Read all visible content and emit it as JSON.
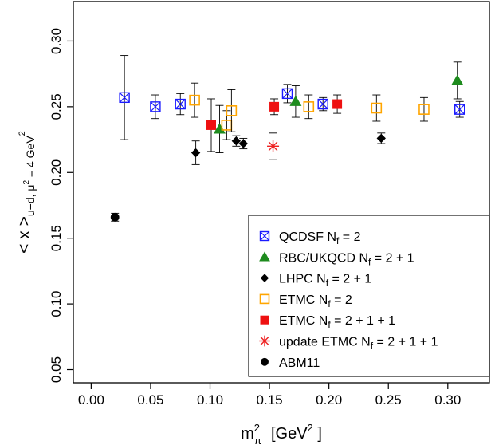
{
  "chart_data": {
    "type": "scatter",
    "xlabel": {
      "main": "m",
      "sup": "2",
      "sub": "π",
      "unit": "[GeV",
      "unit_sup": "2",
      "unit_end": " ]"
    },
    "ylabel": {
      "main": "< x >",
      "sub": "u−d, μ",
      "sub_sup": "2",
      "sub_end": " = 4  GeV",
      "end_sup": "2"
    },
    "xlim": [
      -0.015,
      0.335
    ],
    "ylim": [
      0.04,
      0.33
    ],
    "x_ticks": [
      0.0,
      0.05,
      0.1,
      0.15,
      0.2,
      0.25,
      0.3
    ],
    "x_tick_labels": [
      "0.00",
      "0.05",
      "0.10",
      "0.15",
      "0.20",
      "0.25",
      "0.30"
    ],
    "y_ticks": [
      0.05,
      0.1,
      0.15,
      0.2,
      0.25,
      0.3
    ],
    "y_tick_labels": [
      "0.05",
      "0.10",
      "0.15",
      "0.20",
      "0.25",
      "0.30"
    ],
    "grid": false,
    "legend_position": "bottom-right",
    "series": [
      {
        "name": "QCDSF N",
        "name_sub": "f",
        "name_tail": " = 2",
        "marker": "boxx",
        "color": "#1a1aff",
        "points": [
          {
            "x": 0.028,
            "y": 0.257,
            "err": 0.032
          },
          {
            "x": 0.054,
            "y": 0.25,
            "err": 0.009
          },
          {
            "x": 0.075,
            "y": 0.252,
            "err": 0.008
          },
          {
            "x": 0.165,
            "y": 0.26,
            "err": 0.007
          },
          {
            "x": 0.195,
            "y": 0.252,
            "err": 0.005
          },
          {
            "x": 0.31,
            "y": 0.248,
            "err": 0.006
          }
        ]
      },
      {
        "name": "RBC/UKQCD N",
        "name_sub": "f",
        "name_tail": " = 2 + 1",
        "marker": "triangle",
        "color": "#1e8b1e",
        "points": [
          {
            "x": 0.108,
            "y": 0.233,
            "err": 0.018
          },
          {
            "x": 0.172,
            "y": 0.254,
            "err": 0.012
          },
          {
            "x": 0.308,
            "y": 0.27,
            "err": 0.014
          }
        ]
      },
      {
        "name": "LHPC N",
        "name_sub": "f",
        "name_tail": " = 2 + 1",
        "marker": "diamond",
        "color": "#000000",
        "points": [
          {
            "x": 0.088,
            "y": 0.215,
            "err": 0.009
          },
          {
            "x": 0.122,
            "y": 0.224,
            "err": 0.004
          },
          {
            "x": 0.128,
            "y": 0.222,
            "err": 0.004
          },
          {
            "x": 0.244,
            "y": 0.226,
            "err": 0.004
          }
        ]
      },
      {
        "name": "ETMC N",
        "name_sub": "f",
        "name_tail": " = 2",
        "marker": "open-square",
        "color": "#ffa500",
        "points": [
          {
            "x": 0.087,
            "y": 0.255,
            "err": 0.013
          },
          {
            "x": 0.114,
            "y": 0.236,
            "err": 0.011
          },
          {
            "x": 0.118,
            "y": 0.247,
            "err": 0.016
          },
          {
            "x": 0.183,
            "y": 0.25,
            "err": 0.009
          },
          {
            "x": 0.24,
            "y": 0.249,
            "err": 0.01
          },
          {
            "x": 0.28,
            "y": 0.248,
            "err": 0.009
          }
        ]
      },
      {
        "name": "ETMC N",
        "name_sub": "f",
        "name_tail": " = 2 + 1 + 1",
        "marker": "filled-square",
        "color": "#ee1111",
        "points": [
          {
            "x": 0.101,
            "y": 0.236,
            "err": 0.02
          },
          {
            "x": 0.154,
            "y": 0.25,
            "err": 0.006
          },
          {
            "x": 0.207,
            "y": 0.252,
            "err": 0.007
          }
        ]
      },
      {
        "name": "update ETMC N",
        "name_sub": "f",
        "name_tail": " = 2 + 1 + 1",
        "marker": "asterisk",
        "color": "#ee2222",
        "points": [
          {
            "x": 0.153,
            "y": 0.22,
            "err": 0.01
          }
        ]
      },
      {
        "name": "ABM11",
        "name_sub": "",
        "name_tail": "",
        "marker": "circle",
        "color": "#000000",
        "points": [
          {
            "x": 0.02,
            "y": 0.166,
            "err": 0.003
          }
        ]
      }
    ]
  }
}
